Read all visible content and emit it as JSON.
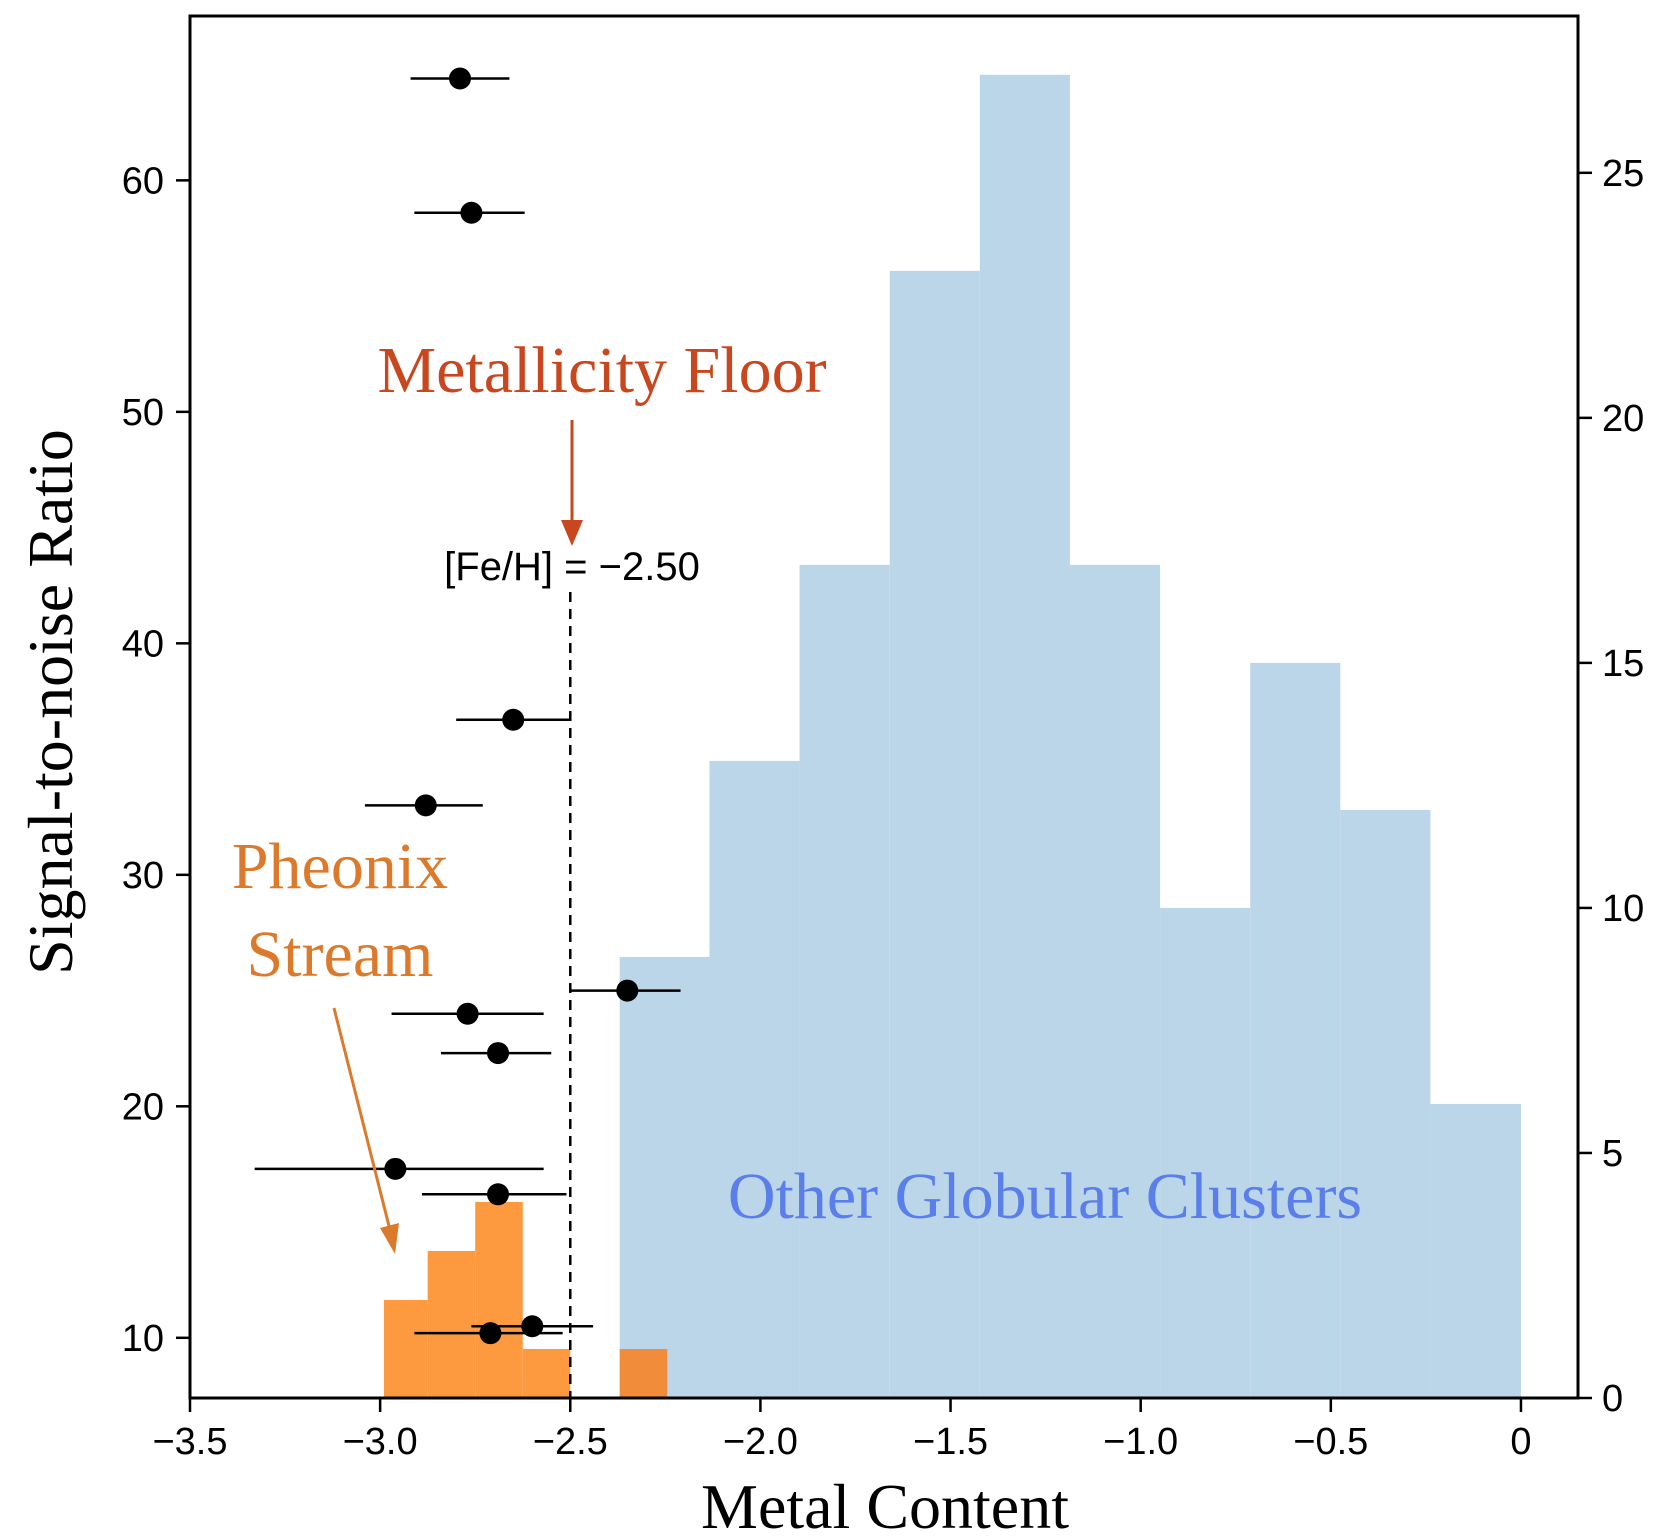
{
  "colors": {
    "other_hist": "#bcd6e9",
    "stream_hist": "#fd9a3f",
    "stream_hist_dark": "#f08c3a",
    "floor_text": "#c9471e",
    "stream_text": "#dc7a2c",
    "clusters_text": "#5b7fea",
    "axis": "#000000"
  },
  "chart_data": {
    "type": "histogram+scatter",
    "xlabel": "Metal Content",
    "ylabel": "Signal-to-noise Ratio",
    "xlim": [
      -3.5,
      0.15
    ],
    "ylim": [
      7.4,
      67.1
    ],
    "y2lim": [
      0,
      28.2
    ],
    "x_ticks": [
      {
        "value": -3.5,
        "label": "−3.5"
      },
      {
        "value": -3.0,
        "label": "−3.0"
      },
      {
        "value": -2.5,
        "label": "−2.5"
      },
      {
        "value": -2.0,
        "label": "−2.0"
      },
      {
        "value": -1.5,
        "label": "−1.5"
      },
      {
        "value": -1.0,
        "label": "−1.0"
      },
      {
        "value": -0.5,
        "label": "−0.5"
      },
      {
        "value": 0,
        "label": "0"
      }
    ],
    "y_ticks": [
      {
        "value": 10,
        "label": "10"
      },
      {
        "value": 20,
        "label": "20"
      },
      {
        "value": 30,
        "label": "30"
      },
      {
        "value": 40,
        "label": "40"
      },
      {
        "value": 50,
        "label": "50"
      },
      {
        "value": 60,
        "label": "60"
      }
    ],
    "y2_ticks": [
      {
        "value": 0,
        "label": "0"
      },
      {
        "value": 5,
        "label": "5"
      },
      {
        "value": 10,
        "label": "10"
      },
      {
        "value": 15,
        "label": "15"
      },
      {
        "value": 20,
        "label": "20"
      },
      {
        "value": 25,
        "label": "25"
      }
    ],
    "other_clusters_hist": {
      "name": "Other Globular Clusters",
      "bins": [
        {
          "x0": -2.37,
          "x1": -2.134,
          "count": 9
        },
        {
          "x0": -2.134,
          "x1": -1.897,
          "count": 13
        },
        {
          "x0": -1.897,
          "x1": -1.66,
          "count": 17
        },
        {
          "x0": -1.66,
          "x1": -1.423,
          "count": 23
        },
        {
          "x0": -1.423,
          "x1": -1.186,
          "count": 27
        },
        {
          "x0": -1.186,
          "x1": -0.949,
          "count": 17
        },
        {
          "x0": -0.949,
          "x1": -0.712,
          "count": 10
        },
        {
          "x0": -0.712,
          "x1": -0.475,
          "count": 15
        },
        {
          "x0": -0.475,
          "x1": -0.238,
          "count": 12
        },
        {
          "x0": -0.238,
          "x1": 0.0,
          "count": 6
        }
      ]
    },
    "stream_hist": {
      "name": "Pheonix Stream",
      "bins": [
        {
          "x0": -2.99,
          "x1": -2.875,
          "count": 2
        },
        {
          "x0": -2.875,
          "x1": -2.75,
          "count": 3
        },
        {
          "x0": -2.75,
          "x1": -2.625,
          "count": 4
        },
        {
          "x0": -2.625,
          "x1": -2.5,
          "count": 1
        },
        {
          "x0": -2.37,
          "x1": -2.245,
          "count": 1
        }
      ]
    },
    "points": [
      {
        "x": -2.79,
        "y": 64.4,
        "xmin": -2.92,
        "xmax": -2.66
      },
      {
        "x": -2.76,
        "y": 58.6,
        "xmin": -2.91,
        "xmax": -2.62
      },
      {
        "x": -2.65,
        "y": 36.7,
        "xmin": -2.8,
        "xmax": -2.5
      },
      {
        "x": -2.88,
        "y": 33.0,
        "xmin": -3.04,
        "xmax": -2.73
      },
      {
        "x": -2.35,
        "y": 25.0,
        "xmin": -2.5,
        "xmax": -2.21
      },
      {
        "x": -2.77,
        "y": 24.0,
        "xmin": -2.97,
        "xmax": -2.57
      },
      {
        "x": -2.69,
        "y": 22.3,
        "xmin": -2.84,
        "xmax": -2.55
      },
      {
        "x": -2.96,
        "y": 17.3,
        "xmin": -3.33,
        "xmax": -2.57
      },
      {
        "x": -2.69,
        "y": 16.2,
        "xmin": -2.89,
        "xmax": -2.51
      },
      {
        "x": -2.6,
        "y": 10.5,
        "xmin": -2.76,
        "xmax": -2.44
      },
      {
        "x": -2.71,
        "y": 10.2,
        "xmin": -2.91,
        "xmax": -2.52
      }
    ],
    "floor_line": {
      "x": -2.5,
      "label": "[Fe/H] = −2.50"
    },
    "annotations": {
      "floor_title": "Metallicity Floor",
      "stream_line1": "Pheonix",
      "stream_line2": "Stream",
      "clusters": "Other Globular Clusters"
    }
  }
}
